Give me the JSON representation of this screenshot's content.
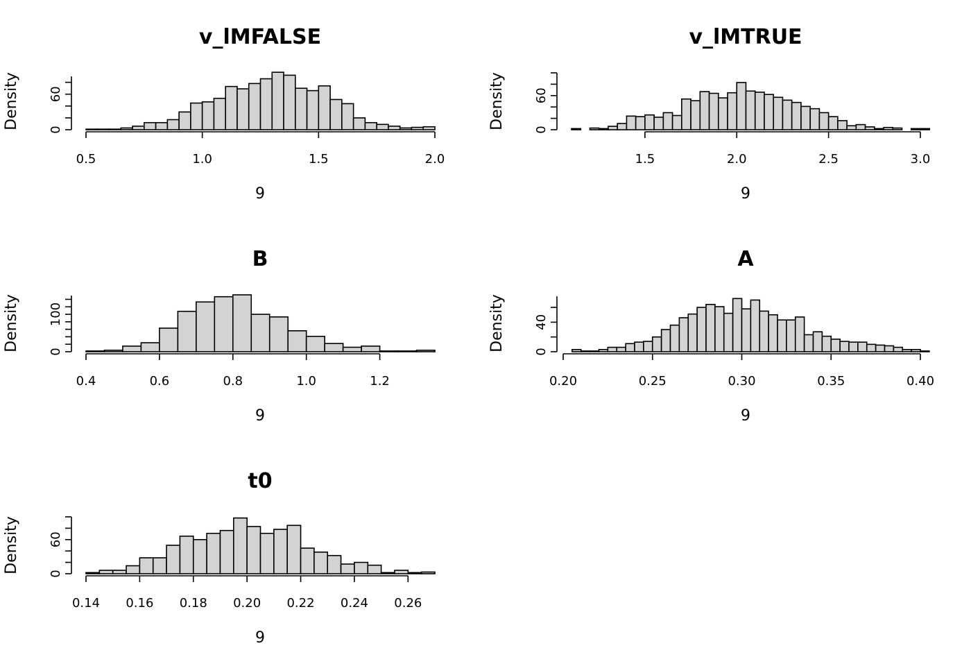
{
  "chart_data": [
    {
      "type": "histogram",
      "title": "v_lMFALSE",
      "xlabel": "9",
      "ylabel": "Density",
      "xlim": [
        0.5,
        2.0
      ],
      "xticks": [
        "0.5",
        "1.0",
        "1.5",
        "2.0"
      ],
      "xtick_values": [
        0.5,
        1.0,
        1.5,
        2.0
      ],
      "yticks": [
        "0",
        "60"
      ],
      "ytick_values": [
        0,
        60
      ],
      "yaxis_max": 90,
      "ylim": [
        0,
        96
      ],
      "bin_start": 0.5,
      "bin_width": 0.05,
      "values": [
        1,
        1,
        1,
        3,
        6,
        12,
        12,
        17,
        30,
        45,
        47,
        53,
        73,
        69,
        78,
        86,
        97,
        92,
        70,
        66,
        74,
        51,
        44,
        20,
        12,
        9,
        6,
        3,
        4,
        5
      ]
    },
    {
      "type": "histogram",
      "title": "v_lMTRUE",
      "xlabel": "9",
      "ylabel": "Density",
      "xlim": [
        1.1,
        3.0
      ],
      "xticks": [
        "1.5",
        "2.0",
        "2.5",
        "3.0"
      ],
      "xtick_values": [
        1.5,
        2.0,
        2.5,
        3.0
      ],
      "yticks": [
        "0",
        "60"
      ],
      "ytick_values": [
        0,
        60
      ],
      "yaxis_max": 100,
      "ylim": [
        0,
        100
      ],
      "bin_start": 1.1,
      "bin_width": 0.05,
      "values": [
        2,
        0,
        3,
        2,
        6,
        11,
        24,
        23,
        26,
        22,
        30,
        25,
        54,
        51,
        67,
        64,
        56,
        65,
        83,
        68,
        66,
        62,
        57,
        52,
        48,
        41,
        37,
        30,
        23,
        16,
        7,
        9,
        5,
        2,
        4,
        3,
        0,
        2,
        2
      ]
    },
    {
      "type": "histogram",
      "title": "B",
      "xlabel": "9",
      "ylabel": "Density",
      "xlim": [
        0.4,
        1.35
      ],
      "xticks": [
        "0.4",
        "0.6",
        "0.8",
        "1.0",
        "1.2"
      ],
      "xtick_values": [
        0.4,
        0.6,
        0.8,
        1.0,
        1.2
      ],
      "yticks": [
        "0",
        "100"
      ],
      "ytick_values": [
        0,
        100
      ],
      "yaxis_max": 150,
      "ylim": [
        0,
        152
      ],
      "bin_start": 0.4,
      "bin_width": 0.05,
      "values": [
        2,
        4,
        15,
        24,
        63,
        108,
        133,
        147,
        152,
        100,
        93,
        56,
        41,
        22,
        12,
        15,
        2,
        2,
        4
      ]
    },
    {
      "type": "histogram",
      "title": "A",
      "xlabel": "9",
      "ylabel": "Density",
      "xlim": [
        0.2,
        0.4
      ],
      "xticks": [
        "0.20",
        "0.25",
        "0.30",
        "0.35",
        "0.40"
      ],
      "xtick_values": [
        0.2,
        0.25,
        0.3,
        0.35,
        0.4
      ],
      "yticks": [
        "0",
        "40"
      ],
      "ytick_values": [
        0,
        40
      ],
      "yaxis_max": 75,
      "ylim": [
        0,
        77
      ],
      "bin_start": 0.205,
      "bin_width": 0.005,
      "values": [
        3,
        1,
        1,
        3,
        6,
        6,
        11,
        13,
        14,
        20,
        30,
        36,
        46,
        51,
        60,
        64,
        61,
        52,
        72,
        58,
        70,
        55,
        50,
        43,
        43,
        47,
        23,
        27,
        21,
        17,
        14,
        13,
        13,
        10,
        9,
        8,
        6,
        3,
        3,
        1
      ]
    },
    {
      "type": "histogram",
      "title": "t0",
      "xlabel": "9",
      "ylabel": "Density",
      "xlim": [
        0.14,
        0.27
      ],
      "xticks": [
        "0.14",
        "0.16",
        "0.18",
        "0.20",
        "0.22",
        "0.24",
        "0.26"
      ],
      "xtick_values": [
        0.14,
        0.16,
        0.18,
        0.2,
        0.22,
        0.24,
        0.26
      ],
      "yticks": [
        "0",
        "60"
      ],
      "ytick_values": [
        0,
        60
      ],
      "yaxis_max": 100,
      "ylim": [
        0,
        100
      ],
      "bin_start": 0.14,
      "bin_width": 0.005,
      "values": [
        2,
        6,
        6,
        14,
        28,
        28,
        50,
        66,
        60,
        71,
        76,
        98,
        83,
        71,
        78,
        85,
        45,
        38,
        32,
        17,
        20,
        15,
        2,
        6,
        2,
        3
      ]
    }
  ]
}
